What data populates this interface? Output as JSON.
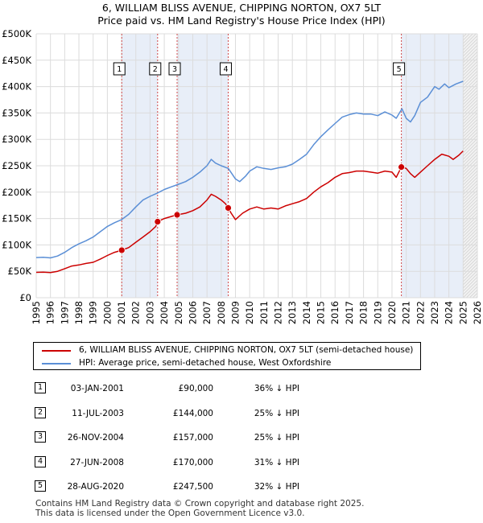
{
  "title_line1": "6, WILLIAM BLISS AVENUE, CHIPPING NORTON, OX7 5LT",
  "title_line2": "Price paid vs. HM Land Registry's House Price Index (HPI)",
  "colors": {
    "property": "#cc0000",
    "hpi": "#5b8fd6",
    "band": "#e8eef8",
    "grid": "#dcdcdc",
    "marker_line": "#d04a4a"
  },
  "chart_data": {
    "type": "line",
    "xlim": [
      1995,
      2026
    ],
    "ylim": [
      0,
      500000
    ],
    "y_ticks": [
      0,
      50000,
      100000,
      150000,
      200000,
      250000,
      300000,
      350000,
      400000,
      450000,
      500000
    ],
    "y_tick_labels": [
      "£0",
      "£50K",
      "£100K",
      "£150K",
      "£200K",
      "£250K",
      "£300K",
      "£350K",
      "£400K",
      "£450K",
      "£500K"
    ],
    "x_ticks": [
      1995,
      1996,
      1997,
      1998,
      1999,
      2000,
      2001,
      2002,
      2003,
      2004,
      2005,
      2006,
      2007,
      2008,
      2009,
      2010,
      2011,
      2012,
      2013,
      2014,
      2015,
      2016,
      2017,
      2018,
      2019,
      2020,
      2021,
      2022,
      2023,
      2024,
      2025,
      2026
    ],
    "x_tick_labels": [
      "1995",
      "1996",
      "1997",
      "1998",
      "1999",
      "2000",
      "2001",
      "2002",
      "2003",
      "2004",
      "2005",
      "2006",
      "2007",
      "2008",
      "2009",
      "2010",
      "2011",
      "2012",
      "2013",
      "2014",
      "2015",
      "2016",
      "2017",
      "2018",
      "2019",
      "2020",
      "2021",
      "2022",
      "2023",
      "2024",
      "2025",
      "2026"
    ],
    "grid": true,
    "future_from": 2025.0,
    "shaded_bands": [
      [
        2001.01,
        2003.53
      ],
      [
        2004.9,
        2008.49
      ],
      [
        2020.66,
        2025.0
      ]
    ],
    "series": [
      {
        "name": "6, WILLIAM BLISS AVENUE, CHIPPING NORTON, OX7 5LT (semi-detached house)",
        "x": [
          1995.0,
          1995.5,
          1996.0,
          1996.5,
          1997.0,
          1997.5,
          1998.0,
          1998.5,
          1999.0,
          1999.5,
          2000.0,
          2000.5,
          2001.01,
          2001.5,
          2002.0,
          2002.5,
          2003.0,
          2003.4,
          2003.53,
          2004.0,
          2004.5,
          2004.9,
          2005.5,
          2006.0,
          2006.5,
          2007.0,
          2007.3,
          2007.6,
          2008.0,
          2008.3,
          2008.49,
          2008.7,
          2009.0,
          2009.5,
          2010.0,
          2010.5,
          2011.0,
          2011.5,
          2012.0,
          2012.5,
          2013.0,
          2013.5,
          2014.0,
          2014.5,
          2015.0,
          2015.5,
          2016.0,
          2016.5,
          2017.0,
          2017.5,
          2018.0,
          2018.5,
          2019.0,
          2019.5,
          2020.0,
          2020.3,
          2020.66,
          2021.0,
          2021.3,
          2021.6,
          2022.0,
          2022.5,
          2023.0,
          2023.5,
          2024.0,
          2024.3,
          2024.7,
          2025.0
        ],
        "values": [
          48000,
          48500,
          47500,
          50000,
          55000,
          60000,
          62000,
          65000,
          67000,
          73000,
          80000,
          86000,
          90000,
          95000,
          105000,
          115000,
          125000,
          135000,
          144000,
          150000,
          154000,
          157000,
          160000,
          165000,
          172000,
          185000,
          196000,
          192000,
          185000,
          178000,
          170000,
          160000,
          148000,
          160000,
          168000,
          172000,
          168000,
          170000,
          168000,
          174000,
          178000,
          182000,
          188000,
          200000,
          210000,
          218000,
          228000,
          235000,
          237000,
          240000,
          240000,
          238000,
          236000,
          240000,
          238000,
          228000,
          247500,
          245000,
          235000,
          228000,
          238000,
          250000,
          262000,
          272000,
          268000,
          262000,
          270000,
          278000
        ]
      },
      {
        "name": "HPI: Average price, semi-detached house, West Oxfordshire",
        "x": [
          1995.0,
          1995.5,
          1996.0,
          1996.5,
          1997.0,
          1997.5,
          1998.0,
          1998.5,
          1999.0,
          1999.5,
          2000.0,
          2000.5,
          2001.0,
          2001.5,
          2002.0,
          2002.5,
          2003.0,
          2003.5,
          2004.0,
          2004.5,
          2005.0,
          2005.5,
          2006.0,
          2006.5,
          2007.0,
          2007.3,
          2007.6,
          2008.0,
          2008.5,
          2009.0,
          2009.3,
          2009.7,
          2010.0,
          2010.5,
          2011.0,
          2011.5,
          2012.0,
          2012.5,
          2013.0,
          2013.5,
          2014.0,
          2014.5,
          2015.0,
          2015.5,
          2016.0,
          2016.5,
          2017.0,
          2017.5,
          2018.0,
          2018.5,
          2019.0,
          2019.5,
          2020.0,
          2020.3,
          2020.7,
          2021.0,
          2021.3,
          2021.6,
          2022.0,
          2022.5,
          2023.0,
          2023.3,
          2023.7,
          2024.0,
          2024.5,
          2025.0
        ],
        "values": [
          76000,
          76500,
          75500,
          79000,
          86000,
          95000,
          102000,
          108000,
          115000,
          125000,
          135000,
          142000,
          148000,
          158000,
          172000,
          185000,
          192000,
          198000,
          205000,
          210000,
          215000,
          220000,
          228000,
          238000,
          250000,
          262000,
          255000,
          250000,
          245000,
          225000,
          220000,
          230000,
          240000,
          248000,
          245000,
          243000,
          246000,
          248000,
          253000,
          262000,
          272000,
          290000,
          305000,
          318000,
          330000,
          342000,
          347000,
          350000,
          348000,
          348000,
          345000,
          352000,
          346000,
          340000,
          358000,
          340000,
          333000,
          345000,
          370000,
          380000,
          400000,
          395000,
          405000,
          398000,
          405000,
          410000
        ]
      }
    ],
    "markers": [
      {
        "label": "1",
        "x": 2001.01,
        "y": 90000
      },
      {
        "label": "2",
        "x": 2003.53,
        "y": 144000
      },
      {
        "label": "3",
        "x": 2004.9,
        "y": 157000
      },
      {
        "label": "4",
        "x": 2008.49,
        "y": 170000
      },
      {
        "label": "5",
        "x": 2020.66,
        "y": 247500
      }
    ]
  },
  "legend": {
    "property": "6, WILLIAM BLISS AVENUE, CHIPPING NORTON, OX7 5LT (semi-detached house)",
    "hpi": "HPI: Average price, semi-detached house, West Oxfordshire"
  },
  "transactions": [
    {
      "num": "1",
      "date": "03-JAN-2001",
      "price": "£90,000",
      "hpi": "36% ↓ HPI"
    },
    {
      "num": "2",
      "date": "11-JUL-2003",
      "price": "£144,000",
      "hpi": "25% ↓ HPI"
    },
    {
      "num": "3",
      "date": "26-NOV-2004",
      "price": "£157,000",
      "hpi": "25% ↓ HPI"
    },
    {
      "num": "4",
      "date": "27-JUN-2008",
      "price": "£170,000",
      "hpi": "31% ↓ HPI"
    },
    {
      "num": "5",
      "date": "28-AUG-2020",
      "price": "£247,500",
      "hpi": "32% ↓ HPI"
    }
  ],
  "footer_line1": "Contains HM Land Registry data © Crown copyright and database right 2025.",
  "footer_line2": "This data is licensed under the Open Government Licence v3.0."
}
